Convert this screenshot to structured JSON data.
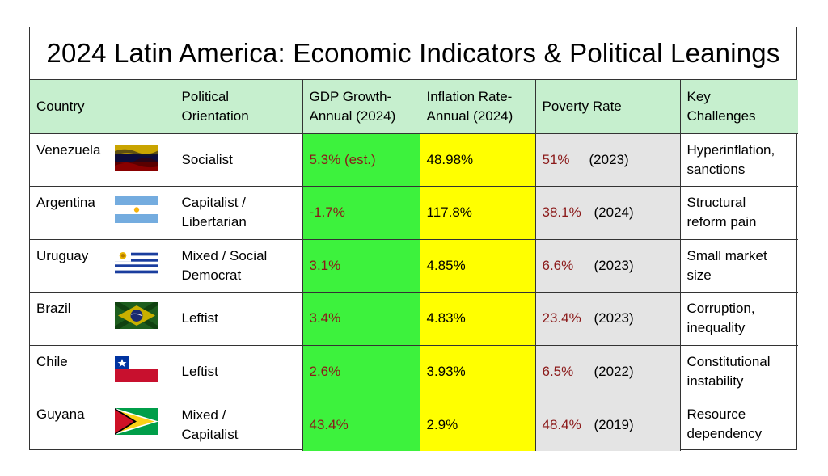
{
  "title": "2024 Latin America: Economic Indicators & Political Leanings",
  "headers": {
    "country": "Country",
    "political": [
      "Political",
      "Orientation"
    ],
    "gdp": [
      "GDP Growth-",
      "Annual (2024)"
    ],
    "inflation": [
      "Inflation Rate-",
      "Annual (2024)"
    ],
    "poverty": "Poverty Rate",
    "challenges": [
      "Key",
      "Challenges"
    ]
  },
  "colors": {
    "header_bg": "#c6efce",
    "gdp_bg": "#3df23d",
    "inflation_bg": "#ffff00",
    "poverty_bg": "#e4e4e4",
    "value_red": "#8b1a1a"
  },
  "rows": [
    {
      "country": "Venezuela",
      "flag_icon": "venezuela-flag",
      "political": [
        "Socialist"
      ],
      "gdp": "5.3% (est.)",
      "inflation": "48.98%",
      "poverty_rate": "51%",
      "poverty_year": "(2023)",
      "challenges": [
        "Hyperinflation,",
        "sanctions"
      ]
    },
    {
      "country": "Argentina",
      "flag_icon": "argentina-flag",
      "political": [
        "Capitalist /",
        "Libertarian"
      ],
      "gdp": "-1.7%",
      "inflation": "117.8%",
      "poverty_rate": "38.1%",
      "poverty_year": "(2024)",
      "challenges": [
        "Structural",
        "reform pain"
      ]
    },
    {
      "country": "Uruguay",
      "flag_icon": "uruguay-flag",
      "political": [
        "Mixed / Social",
        "Democrat"
      ],
      "gdp": "3.1%",
      "inflation": "4.85%",
      "poverty_rate": "6.6%",
      "poverty_year": "(2023)",
      "challenges": [
        "Small market",
        "size"
      ]
    },
    {
      "country": "Brazil",
      "flag_icon": "brazil-flag",
      "political": [
        "Leftist"
      ],
      "gdp": "3.4%",
      "inflation": "4.83%",
      "poverty_rate": "23.4%",
      "poverty_year": "(2023)",
      "challenges": [
        "Corruption,",
        "inequality"
      ]
    },
    {
      "country": "Chile",
      "flag_icon": "chile-flag",
      "political": [
        "Leftist"
      ],
      "gdp": "2.6%",
      "inflation": "3.93%",
      "poverty_rate": "6.5%",
      "poverty_year": "(2022)",
      "challenges": [
        "Constitutional",
        "instability"
      ]
    },
    {
      "country": "Guyana",
      "flag_icon": "guyana-flag",
      "political": [
        "Mixed /",
        "Capitalist"
      ],
      "gdp": "43.4%",
      "inflation": "2.9%",
      "poverty_rate": "48.4%",
      "poverty_year": "(2019)",
      "challenges": [
        "Resource",
        "dependency"
      ]
    }
  ]
}
